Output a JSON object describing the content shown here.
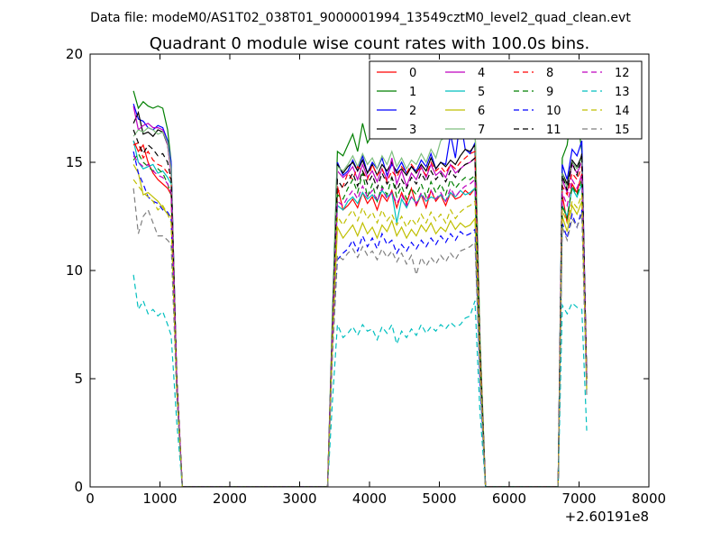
{
  "header": {
    "data_file": "Data file: modeM0/AS1T02_038T01_9000001994_13549cztM0_level2_quad_clean.evt"
  },
  "chart_data": {
    "type": "line",
    "title": "Quadrant 0 module wise count rates with 100.0s bins.",
    "xlabel": "",
    "ylabel": "",
    "x_offset_label": "+2.60191e8",
    "xlim": [
      0,
      8000
    ],
    "ylim": [
      0,
      20
    ],
    "xticks": [
      0,
      1000,
      2000,
      3000,
      4000,
      5000,
      6000,
      7000,
      8000
    ],
    "yticks": [
      0,
      5,
      10,
      15,
      20
    ],
    "grid": false,
    "legend_position": "top-right",
    "x": [
      620,
      690,
      760,
      830,
      900,
      970,
      1040,
      1110,
      1160,
      1240,
      1320,
      1400,
      3400,
      3470,
      3540,
      3620,
      3690,
      3760,
      3830,
      3900,
      3970,
      4040,
      4110,
      4180,
      4250,
      4320,
      4390,
      4460,
      4530,
      4600,
      4670,
      4740,
      4810,
      4880,
      4950,
      5020,
      5090,
      5160,
      5230,
      5300,
      5370,
      5440,
      5510,
      5580,
      5660,
      5740,
      5820,
      6700,
      6760,
      6830,
      6900,
      6970,
      7040,
      7110
    ],
    "series": [
      {
        "name": "0",
        "color": "#ff0000",
        "dash": "solid",
        "values": [
          16.0,
          15.5,
          15.8,
          15.0,
          14.5,
          14.2,
          14.0,
          13.8,
          13.5,
          5.0,
          0,
          0,
          0,
          7.0,
          13.9,
          12.8,
          13.0,
          13.3,
          12.9,
          13.6,
          13.1,
          13.4,
          12.8,
          13.5,
          13.2,
          13.7,
          12.9,
          13.6,
          13.1,
          13.8,
          13.0,
          13.5,
          12.9,
          13.7,
          13.2,
          13.5,
          13.0,
          13.6,
          13.3,
          13.4,
          13.7,
          13.5,
          13.8,
          6.0,
          0,
          0,
          0,
          0,
          13.5,
          12.2,
          14.0,
          13.6,
          14.5,
          5.0
        ]
      },
      {
        "name": "1",
        "color": "#007f00",
        "dash": "solid",
        "values": [
          18.3,
          17.5,
          17.8,
          17.6,
          17.5,
          17.6,
          17.5,
          16.5,
          15.0,
          5.0,
          0,
          0,
          0,
          8.0,
          15.5,
          15.3,
          15.8,
          16.3,
          15.5,
          16.8,
          15.9,
          16.3,
          16.6,
          16.7,
          16.2,
          16.5,
          16.3,
          16.8,
          16.5,
          16.4,
          16.7,
          16.3,
          16.6,
          16.2,
          16.5,
          16.7,
          16.6,
          16.8,
          16.5,
          16.9,
          16.7,
          16.6,
          16.8,
          7.0,
          0,
          0,
          0,
          0,
          15.2,
          15.8,
          17.6,
          17.2,
          15.5,
          5.0
        ]
      },
      {
        "name": "2",
        "color": "#0000ff",
        "dash": "solid",
        "values": [
          17.7,
          17.0,
          16.9,
          16.6,
          16.5,
          16.7,
          16.6,
          16.0,
          15.0,
          5.0,
          0,
          0,
          0,
          7.5,
          15.0,
          14.4,
          14.6,
          15.1,
          14.6,
          15.3,
          14.5,
          15.0,
          14.7,
          15.2,
          14.4,
          14.9,
          14.6,
          15.0,
          14.5,
          14.8,
          14.6,
          15.1,
          14.8,
          15.4,
          14.7,
          15.0,
          14.9,
          16.3,
          15.2,
          17.0,
          15.6,
          15.4,
          15.9,
          6.5,
          0,
          0,
          0,
          0,
          14.9,
          14.2,
          15.6,
          15.3,
          16.0,
          5.0
        ]
      },
      {
        "name": "3",
        "color": "#000000",
        "dash": "solid",
        "values": [
          16.8,
          17.3,
          16.3,
          16.4,
          16.2,
          16.5,
          16.4,
          15.8,
          14.5,
          5.0,
          0,
          0,
          0,
          7.5,
          14.9,
          14.5,
          14.8,
          15.0,
          14.6,
          15.1,
          14.5,
          14.9,
          14.4,
          14.9,
          14.6,
          15.0,
          14.5,
          14.7,
          14.4,
          14.8,
          14.5,
          14.9,
          14.6,
          15.2,
          14.7,
          15.0,
          14.8,
          15.1,
          14.9,
          15.3,
          15.6,
          15.5,
          15.8,
          6.5,
          0,
          0,
          0,
          0,
          14.5,
          14.0,
          15.1,
          14.8,
          15.3,
          5.0
        ]
      },
      {
        "name": "4",
        "color": "#bf00bf",
        "dash": "solid",
        "values": [
          17.6,
          16.5,
          16.7,
          16.8,
          16.6,
          16.6,
          16.5,
          15.8,
          14.5,
          5.0,
          0,
          0,
          0,
          7.3,
          14.6,
          14.3,
          14.5,
          14.8,
          14.2,
          14.9,
          14.3,
          14.6,
          14.1,
          14.7,
          14.2,
          15.2,
          14.0,
          14.6,
          13.9,
          14.5,
          14.2,
          14.8,
          14.3,
          14.9,
          14.4,
          14.6,
          14.3,
          14.9,
          14.5,
          14.7,
          14.9,
          15.0,
          15.2,
          6.4,
          0,
          0,
          0,
          0,
          14.2,
          13.6,
          14.9,
          14.5,
          15.0,
          5.0
        ]
      },
      {
        "name": "5",
        "color": "#00bfbf",
        "dash": "solid",
        "values": [
          16.0,
          15.0,
          14.7,
          14.8,
          14.9,
          14.5,
          14.6,
          14.3,
          14.0,
          5.0,
          0,
          0,
          0,
          7.0,
          13.0,
          12.8,
          13.2,
          13.4,
          13.1,
          13.6,
          13.3,
          13.5,
          13.2,
          13.7,
          13.4,
          13.6,
          12.2,
          13.3,
          12.9,
          13.4,
          13.1,
          13.5,
          13.2,
          13.4,
          13.3,
          13.5,
          13.2,
          13.6,
          13.4,
          13.7,
          13.5,
          13.6,
          13.8,
          6.0,
          0,
          0,
          0,
          0,
          13.0,
          12.5,
          13.8,
          13.4,
          14.0,
          5.0
        ]
      },
      {
        "name": "6",
        "color": "#bfbf00",
        "dash": "solid",
        "values": [
          14.9,
          14.5,
          13.5,
          13.6,
          13.4,
          13.2,
          12.9,
          12.6,
          12.5,
          4.5,
          0,
          0,
          0,
          6.5,
          12.0,
          11.5,
          11.8,
          12.1,
          11.6,
          12.2,
          11.7,
          12.0,
          11.5,
          12.1,
          11.8,
          12.3,
          11.6,
          12.0,
          11.5,
          11.9,
          11.6,
          12.1,
          11.8,
          12.2,
          11.7,
          12.0,
          11.8,
          12.3,
          11.9,
          12.2,
          12.0,
          12.1,
          12.4,
          5.5,
          0,
          0,
          0,
          0,
          12.5,
          11.8,
          13.0,
          12.6,
          13.2,
          4.5
        ]
      },
      {
        "name": "7",
        "color": "#7fbf7f",
        "dash": "solid",
        "values": [
          16.2,
          16.5,
          16.4,
          16.6,
          16.5,
          16.3,
          16.4,
          15.9,
          14.7,
          5.0,
          0,
          0,
          0,
          7.4,
          14.8,
          14.6,
          14.9,
          15.3,
          14.8,
          15.4,
          14.9,
          15.2,
          14.7,
          15.3,
          14.9,
          15.5,
          14.8,
          15.2,
          14.7,
          15.1,
          14.9,
          15.4,
          15.0,
          15.6,
          15.2,
          16.0,
          16.2,
          16.6,
          16.8,
          17.2,
          17.3,
          17.0,
          16.8,
          7.0,
          0,
          0,
          0,
          0,
          14.5,
          13.8,
          15.0,
          14.7,
          15.2,
          5.0
        ]
      },
      {
        "name": "8",
        "color": "#ff0000",
        "dash": "dashed",
        "values": [
          15.8,
          15.9,
          15.2,
          15.5,
          15.1,
          14.9,
          14.8,
          14.5,
          14.2,
          5.0,
          0,
          0,
          0,
          7.0,
          13.6,
          13.9,
          14.5,
          14.2,
          14.8,
          14.6,
          14.2,
          14.9,
          14.4,
          14.7,
          14.1,
          14.6,
          14.3,
          14.8,
          14.5,
          14.9,
          14.6,
          14.7,
          14.4,
          15.0,
          14.6,
          14.8,
          14.5,
          14.9,
          14.7,
          15.0,
          15.2,
          15.4,
          15.5,
          6.5,
          0,
          0,
          0,
          0,
          13.9,
          13.5,
          14.5,
          14.2,
          14.8,
          5.0
        ]
      },
      {
        "name": "9",
        "color": "#007f00",
        "dash": "dashed",
        "values": [
          15.1,
          15.4,
          15.0,
          14.8,
          14.6,
          14.7,
          14.5,
          14.0,
          13.5,
          5.0,
          0,
          0,
          0,
          7.0,
          13.5,
          13.3,
          13.8,
          14.2,
          13.6,
          14.5,
          13.4,
          14.0,
          13.2,
          13.9,
          13.5,
          14.3,
          13.4,
          13.9,
          13.3,
          13.8,
          13.5,
          14.0,
          13.4,
          14.1,
          13.6,
          14.0,
          13.5,
          14.2,
          13.8,
          14.1,
          14.3,
          14.2,
          14.4,
          6.2,
          0,
          0,
          0,
          0,
          13.0,
          12.4,
          13.9,
          13.5,
          14.2,
          5.0
        ]
      },
      {
        "name": "10",
        "color": "#0000ff",
        "dash": "dashed",
        "values": [
          15.5,
          14.5,
          14.0,
          13.4,
          13.2,
          13.1,
          12.8,
          12.7,
          12.4,
          4.5,
          0,
          0,
          0,
          6.5,
          10.5,
          10.8,
          11.0,
          11.4,
          10.9,
          11.6,
          11.1,
          11.5,
          11.0,
          11.7,
          11.2,
          11.4,
          10.8,
          11.2,
          10.9,
          11.3,
          11.0,
          11.4,
          11.1,
          11.5,
          11.2,
          11.6,
          11.3,
          11.7,
          11.4,
          11.8,
          11.6,
          11.7,
          11.9,
          5.0,
          0,
          0,
          0,
          0,
          12.2,
          11.5,
          12.6,
          12.0,
          12.8,
          4.5
        ]
      },
      {
        "name": "11",
        "color": "#000000",
        "dash": "dashed",
        "values": [
          16.5,
          15.9,
          15.4,
          15.8,
          15.6,
          15.3,
          15.4,
          15.0,
          14.2,
          5.0,
          0,
          0,
          0,
          7.2,
          14.2,
          13.8,
          14.1,
          14.5,
          13.9,
          14.6,
          14.0,
          14.4,
          13.8,
          14.5,
          14.0,
          14.3,
          13.7,
          14.2,
          13.8,
          14.3,
          14.0,
          14.5,
          14.1,
          14.6,
          14.2,
          14.5,
          14.1,
          14.6,
          14.3,
          14.7,
          14.9,
          15.0,
          15.2,
          6.5,
          0,
          0,
          0,
          0,
          14.4,
          13.7,
          15.0,
          14.4,
          15.4,
          5.0
        ]
      },
      {
        "name": "12",
        "color": "#bf00bf",
        "dash": "dashed",
        "values": [
          15.3,
          15.0,
          14.8,
          14.9,
          14.6,
          14.4,
          14.3,
          14.0,
          13.6,
          5.0,
          0,
          0,
          0,
          7.0,
          13.2,
          13.0,
          13.4,
          13.7,
          13.3,
          13.9,
          13.4,
          13.7,
          13.2,
          13.8,
          13.3,
          13.6,
          13.1,
          13.5,
          13.0,
          13.4,
          13.1,
          13.6,
          13.2,
          13.7,
          13.3,
          13.6,
          13.2,
          13.8,
          13.4,
          13.7,
          13.9,
          14.0,
          14.2,
          6.0,
          0,
          0,
          0,
          0,
          13.6,
          13.0,
          14.2,
          13.8,
          14.4,
          5.0
        ]
      },
      {
        "name": "13",
        "color": "#00bfbf",
        "dash": "dashed",
        "values": [
          9.8,
          8.2,
          8.6,
          8.0,
          8.2,
          7.9,
          8.1,
          7.5,
          7.0,
          3.0,
          0,
          0,
          0,
          4.0,
          7.5,
          6.9,
          7.1,
          7.4,
          7.0,
          7.5,
          7.2,
          7.3,
          6.8,
          7.4,
          7.1,
          7.5,
          6.6,
          7.2,
          6.9,
          7.3,
          7.0,
          7.5,
          7.1,
          7.4,
          7.2,
          7.5,
          7.3,
          7.6,
          7.4,
          7.5,
          7.8,
          7.9,
          8.6,
          3.5,
          0,
          0,
          0,
          0,
          8.4,
          8.0,
          8.5,
          8.3,
          8.2,
          2.6
        ]
      },
      {
        "name": "14",
        "color": "#bfbf00",
        "dash": "dashed",
        "values": [
          14.2,
          13.9,
          13.6,
          13.4,
          13.2,
          12.8,
          13.0,
          12.6,
          12.2,
          4.5,
          0,
          0,
          0,
          6.8,
          12.5,
          12.1,
          12.5,
          12.8,
          12.3,
          12.9,
          12.4,
          12.7,
          12.2,
          12.8,
          12.3,
          12.6,
          12.1,
          12.5,
          12.0,
          12.4,
          12.1,
          12.6,
          12.2,
          12.7,
          12.3,
          12.6,
          12.2,
          12.8,
          12.4,
          12.7,
          12.9,
          13.0,
          13.2,
          5.8,
          0,
          0,
          0,
          0,
          12.8,
          12.2,
          13.2,
          12.9,
          13.5,
          4.6
        ]
      },
      {
        "name": "15",
        "color": "#7f7f7f",
        "dash": "dashed",
        "values": [
          13.8,
          11.7,
          12.5,
          12.8,
          12.2,
          11.6,
          11.6,
          11.4,
          11.2,
          4.2,
          0,
          0,
          0,
          6.0,
          10.7,
          10.5,
          10.8,
          11.0,
          10.6,
          11.1,
          10.7,
          10.9,
          10.5,
          11.0,
          10.6,
          10.9,
          10.4,
          10.8,
          10.3,
          10.7,
          9.8,
          10.6,
          10.2,
          10.6,
          10.3,
          10.7,
          10.4,
          10.8,
          10.5,
          10.9,
          11.0,
          11.1,
          11.3,
          5.0,
          0,
          0,
          0,
          0,
          12.0,
          11.4,
          12.4,
          12.0,
          12.6,
          4.2
        ]
      }
    ]
  }
}
